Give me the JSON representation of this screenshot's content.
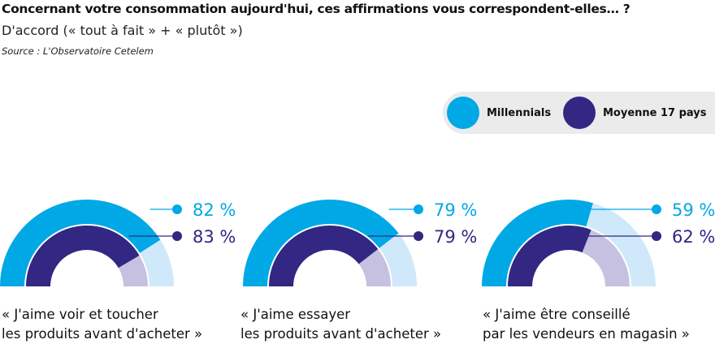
{
  "header": {
    "title": "Concernant votre consommation aujourd'hui, ces affirmations vous correspondent-elles… ?",
    "subtitle": "D'accord (« tout à fait » + « plutôt »)",
    "source": "Source : L'Observatoire Cetelem"
  },
  "legend": [
    {
      "label": "Millennials",
      "color": "#00a8e6"
    },
    {
      "label": "Moyenne 17 pays",
      "color": "#322782"
    }
  ],
  "chart_data": {
    "type": "gauge",
    "unit": "%",
    "max": 100,
    "colors": {
      "Millennials": "#00a8e6",
      "Millennials_bg": "#cfe9fa",
      "Moyenne 17 pays": "#322782",
      "Moyenne_bg": "#c6c0e1"
    },
    "categories": [
      {
        "line1": "« J'aime voir et toucher",
        "line2": "les produits avant d'acheter »"
      },
      {
        "line1": "« J'aime essayer",
        "line2": "les produits avant d'acheter »"
      },
      {
        "line1": "« J'aime être conseillé",
        "line2": "par les vendeurs en magasin »"
      }
    ],
    "series": [
      {
        "name": "Millennials",
        "values": [
          82,
          79,
          59
        ],
        "labels": [
          "82 %",
          "79 %",
          "59 %"
        ]
      },
      {
        "name": "Moyenne 17 pays",
        "values": [
          83,
          79,
          62
        ],
        "labels": [
          "83 %",
          "79 %",
          "62 %"
        ]
      }
    ]
  }
}
